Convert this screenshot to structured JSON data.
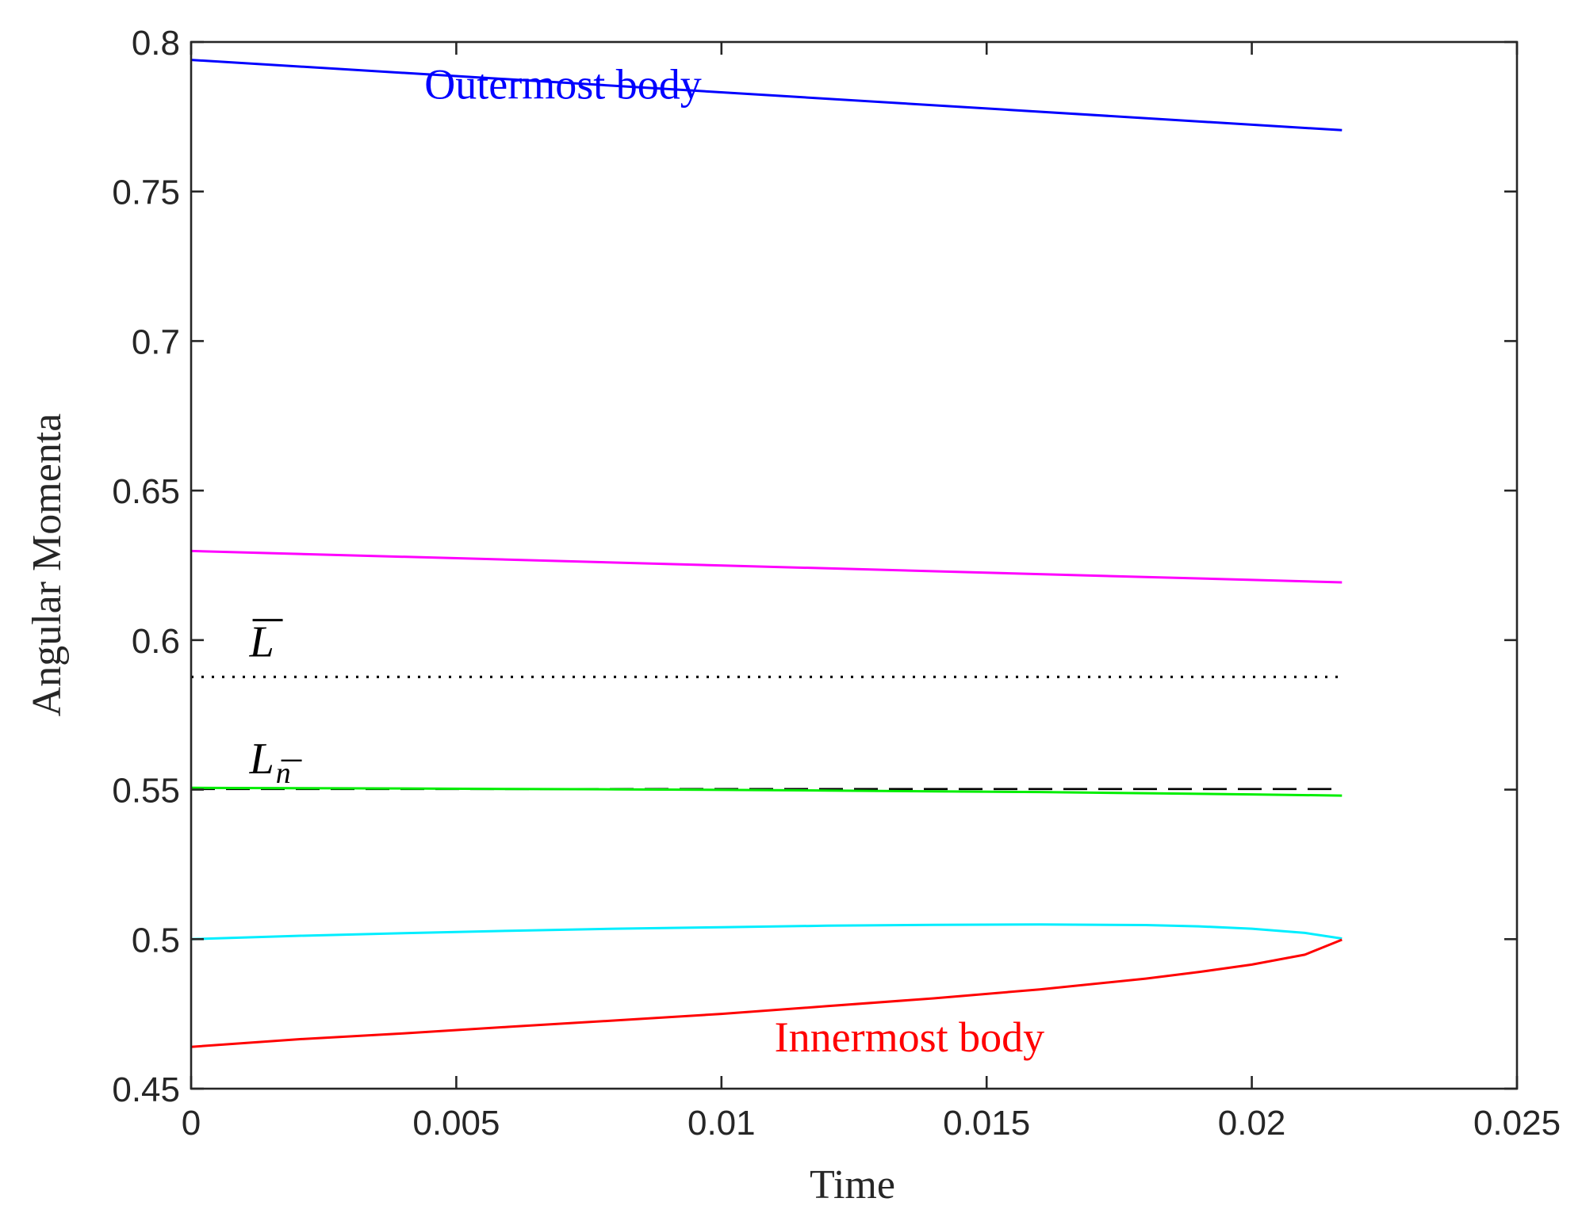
{
  "chart_data": {
    "type": "line",
    "title": "",
    "xlabel": "Time",
    "ylabel": "Angular Momenta",
    "xlim": [
      0,
      0.025
    ],
    "ylim": [
      0.45,
      0.8
    ],
    "xticks": [
      0,
      0.005,
      0.01,
      0.015,
      0.02,
      0.025
    ],
    "xtick_labels": [
      "0",
      "0.005",
      "0.01",
      "0.015",
      "0.02",
      "0.025"
    ],
    "yticks": [
      0.45,
      0.5,
      0.55,
      0.6,
      0.65,
      0.7,
      0.75,
      0.8
    ],
    "ytick_labels": [
      "0.45",
      "0.5",
      "0.55",
      "0.6",
      "0.65",
      "0.7",
      "0.75",
      "0.8"
    ],
    "grid": false,
    "series": [
      {
        "name": "Outermost body",
        "color": "#0000ff",
        "style": "solid",
        "x": [
          0,
          0.0217
        ],
        "y": [
          0.794,
          0.7705
        ]
      },
      {
        "name": "magenta",
        "color": "#ff00ff",
        "style": "solid",
        "x": [
          0,
          0.0217
        ],
        "y": [
          0.6298,
          0.6193
        ]
      },
      {
        "name": "L-bar",
        "color": "#000000",
        "style": "dotted",
        "x": [
          0,
          0.0217
        ],
        "y": [
          0.5877,
          0.5877
        ]
      },
      {
        "name": "L-n-bar",
        "color": "#000000",
        "style": "dashed",
        "x": [
          0,
          0.0217
        ],
        "y": [
          0.5502,
          0.5502
        ]
      },
      {
        "name": "green",
        "color": "#00ee00",
        "style": "solid",
        "x": [
          0,
          0.002,
          0.004,
          0.006,
          0.008,
          0.01,
          0.012,
          0.014,
          0.016,
          0.018,
          0.02,
          0.0217
        ],
        "y": [
          0.5506,
          0.5505,
          0.5504,
          0.5502,
          0.5501,
          0.5499,
          0.5497,
          0.5494,
          0.5492,
          0.5488,
          0.5484,
          0.548
        ]
      },
      {
        "name": "cyan",
        "color": "#00eeff",
        "style": "solid",
        "x": [
          0,
          0.002,
          0.004,
          0.006,
          0.008,
          0.01,
          0.012,
          0.014,
          0.016,
          0.018,
          0.019,
          0.02,
          0.021,
          0.0217
        ],
        "y": [
          0.5,
          0.5011,
          0.502,
          0.5028,
          0.5035,
          0.504,
          0.5045,
          0.5048,
          0.5049,
          0.5047,
          0.5043,
          0.5035,
          0.5021,
          0.5002
        ]
      },
      {
        "name": "Innermost body",
        "color": "#ff0000",
        "style": "solid",
        "x": [
          0,
          0.002,
          0.004,
          0.006,
          0.008,
          0.01,
          0.012,
          0.014,
          0.016,
          0.018,
          0.019,
          0.02,
          0.021,
          0.0217
        ],
        "y": [
          0.464,
          0.4665,
          0.4685,
          0.4707,
          0.4728,
          0.475,
          0.4776,
          0.4802,
          0.4832,
          0.4868,
          0.489,
          0.4915,
          0.4948,
          0.4998
        ]
      }
    ],
    "annotations": [
      {
        "text": "Outermost body",
        "color": "#0000ff",
        "x": 0.0044,
        "y": 0.781
      },
      {
        "text": "Innermost body",
        "color": "#ff0000",
        "x": 0.011,
        "y": 0.4625
      },
      {
        "text": "L",
        "color": "#000000",
        "x": 0.0011,
        "y": 0.5945,
        "overline": true
      },
      {
        "text": "L",
        "subscript": "n",
        "color": "#000000",
        "x": 0.0011,
        "y": 0.5555
      }
    ]
  }
}
